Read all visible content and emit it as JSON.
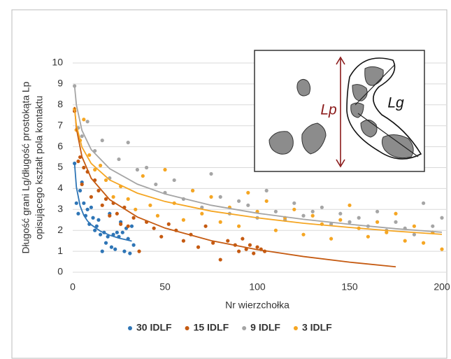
{
  "chart_data": {
    "type": "scatter",
    "x_label": "Nr wierzchołka",
    "y_label": [
      "Długość grani Lg/długość prostokąta Lp",
      "opisującego kształt pola kontaktu"
    ],
    "xlim": [
      0,
      200
    ],
    "xticks": [
      0,
      50,
      100,
      150,
      200
    ],
    "ylim": [
      0,
      10
    ],
    "yticks": [
      0,
      1,
      2,
      3,
      4,
      5,
      6,
      7,
      8,
      9,
      10
    ],
    "grid": true,
    "legend": "bottom",
    "inset": {
      "labels": [
        "Lp",
        "Lg"
      ]
    },
    "series": [
      {
        "name": "30 IDLF",
        "color": "#2e75b6",
        "x": [
          1,
          2,
          3,
          4,
          5,
          6,
          7,
          8,
          9,
          10,
          11,
          12,
          13,
          14,
          15,
          16,
          17,
          18,
          19,
          20,
          21,
          22,
          23,
          24,
          25,
          26,
          27,
          28,
          29,
          30,
          31,
          32,
          33
        ],
        "values": [
          5.2,
          3.3,
          2.8,
          3.9,
          4.3,
          3.3,
          2.7,
          3.0,
          2.3,
          3.1,
          2.6,
          2.0,
          2.2,
          2.5,
          1.8,
          1.0,
          1.9,
          1.4,
          1.7,
          2.8,
          1.2,
          1.8,
          1.1,
          1.9,
          1.7,
          2.4,
          1.9,
          1.0,
          2.1,
          1.6,
          0.9,
          2.2,
          1.3
        ],
        "trendline": {
          "x": [
            1,
            2,
            4,
            6,
            8,
            10,
            15,
            20,
            25,
            32
          ],
          "values": [
            5.2,
            4.06,
            3.17,
            2.72,
            2.45,
            2.27,
            1.96,
            1.77,
            1.63,
            1.49
          ]
        }
      },
      {
        "name": "15 IDLF",
        "color": "#c55a11",
        "x": [
          1,
          2,
          3,
          4,
          5,
          6,
          8,
          10,
          12,
          14,
          16,
          18,
          20,
          22,
          24,
          26,
          28,
          30,
          33,
          36,
          40,
          44,
          48,
          52,
          56,
          60,
          64,
          68,
          72,
          76,
          80,
          84,
          88,
          90,
          92,
          94,
          96,
          98,
          100,
          102,
          104
        ],
        "values": [
          7.7,
          6.8,
          5.3,
          5.5,
          4.2,
          5.0,
          4.8,
          3.6,
          4.4,
          3.9,
          3.2,
          3.5,
          2.7,
          3.3,
          2.8,
          2.3,
          3.1,
          2.2,
          2.6,
          1.0,
          2.4,
          2.1,
          1.7,
          2.3,
          2.0,
          1.5,
          1.8,
          1.2,
          2.2,
          1.4,
          0.6,
          1.5,
          1.3,
          1.0,
          1.6,
          1.1,
          1.3,
          0.9,
          1.2,
          1.1,
          1.0
        ],
        "trendline": {
          "x": [
            1,
            2,
            5,
            10,
            20,
            35,
            50,
            75,
            100,
            125,
            150,
            175
          ],
          "values": [
            7.9,
            6.87,
            5.52,
            4.49,
            3.47,
            2.64,
            2.11,
            1.51,
            1.08,
            0.75,
            0.48,
            0.26
          ]
        }
      },
      {
        "name": "9 IDLF",
        "color": "#a5a5a5",
        "x": [
          1,
          3,
          5,
          8,
          12,
          16,
          20,
          25,
          30,
          35,
          40,
          45,
          50,
          55,
          60,
          65,
          70,
          75,
          80,
          85,
          90,
          95,
          100,
          105,
          110,
          115,
          120,
          125,
          130,
          135,
          140,
          145,
          150,
          155,
          160,
          165,
          170,
          175,
          180,
          185,
          190,
          195,
          200
        ],
        "values": [
          8.9,
          6.9,
          6.5,
          7.2,
          5.8,
          6.3,
          4.5,
          5.4,
          6.2,
          4.9,
          5.0,
          4.2,
          3.8,
          4.4,
          3.5,
          3.9,
          3.1,
          4.7,
          3.6,
          2.8,
          3.4,
          3.2,
          2.6,
          3.9,
          2.9,
          2.5,
          3.3,
          2.7,
          2.9,
          3.1,
          2.3,
          2.8,
          2.4,
          2.6,
          2.2,
          2.9,
          2.0,
          2.4,
          2.1,
          1.8,
          3.3,
          2.2,
          2.6
        ],
        "trendline": {
          "x": [
            1,
            2,
            5,
            10,
            20,
            35,
            50,
            75,
            100,
            125,
            150,
            175,
            200
          ],
          "values": [
            8.9,
            7.99,
            6.78,
            5.86,
            4.95,
            4.21,
            3.74,
            3.2,
            2.82,
            2.53,
            2.29,
            2.08,
            1.91
          ]
        }
      },
      {
        "name": "3 IDLF",
        "color": "#f5a623",
        "x": [
          1,
          2,
          4,
          6,
          9,
          12,
          15,
          18,
          22,
          26,
          30,
          34,
          38,
          42,
          46,
          50,
          55,
          60,
          65,
          70,
          75,
          80,
          85,
          90,
          95,
          100,
          105,
          110,
          115,
          120,
          125,
          130,
          135,
          140,
          145,
          150,
          155,
          160,
          165,
          170,
          175,
          180,
          185,
          190,
          195,
          200
        ],
        "values": [
          7.8,
          6.8,
          6.3,
          7.3,
          5.6,
          4.9,
          5.1,
          4.4,
          3.6,
          4.1,
          3.5,
          3.0,
          4.6,
          3.2,
          2.7,
          4.9,
          3.3,
          2.5,
          3.9,
          2.8,
          3.6,
          2.4,
          3.1,
          2.2,
          3.8,
          2.9,
          3.4,
          2.0,
          2.6,
          3.0,
          1.8,
          2.7,
          2.3,
          1.6,
          2.5,
          3.2,
          2.1,
          1.7,
          2.4,
          1.9,
          2.8,
          1.5,
          2.2,
          1.4,
          1.9,
          1.1
        ],
        "trendline": {
          "x": [
            1,
            2,
            5,
            10,
            20,
            35,
            50,
            75,
            100,
            125,
            150,
            175,
            200
          ],
          "values": [
            7.8,
            7.02,
            5.98,
            5.2,
            4.41,
            3.78,
            3.38,
            2.92,
            2.6,
            2.34,
            2.14,
            1.96,
            1.81
          ]
        }
      }
    ]
  }
}
